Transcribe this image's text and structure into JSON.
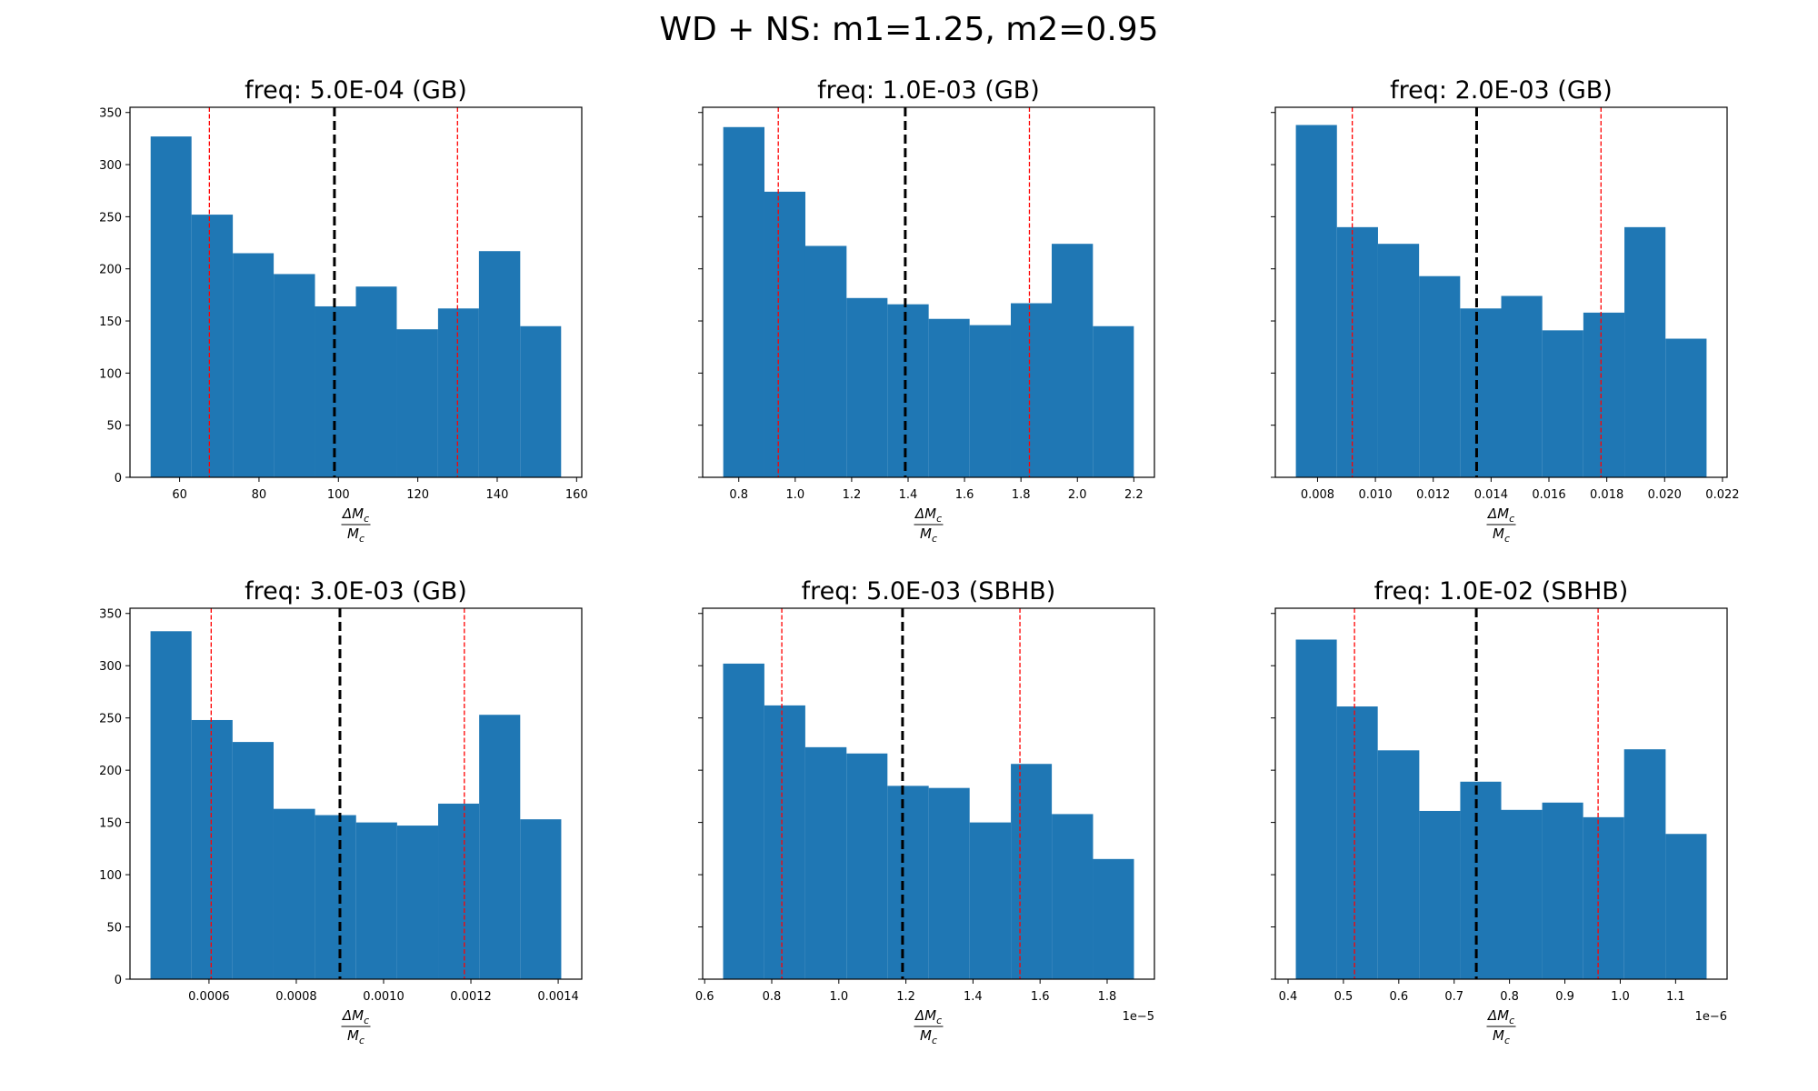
{
  "figure": {
    "suptitle": "WD + NS: m1=1.25, m2=0.95",
    "bar_color": "#1f77b4",
    "median_line_color": "#000000",
    "bound_line_color": "#ff0000"
  },
  "chart_data": [
    {
      "type": "bar",
      "title": "freq: 5.0E-04 (GB)",
      "xlabel": "ΔM_c / M_c",
      "ylabel": "",
      "bin_edges": [
        52.7,
        63.0,
        73.4,
        83.7,
        94.1,
        104.4,
        114.7,
        125.1,
        135.4,
        145.8,
        156.1
      ],
      "counts": [
        327,
        252,
        215,
        195,
        164,
        183,
        142,
        162,
        217,
        145
      ],
      "median": 99.0,
      "lower_bound": 67.5,
      "upper_bound": 130.0,
      "xlim": [
        47.5,
        161.3
      ],
      "ylim": [
        0,
        355
      ],
      "xticks": [
        60,
        80,
        100,
        120,
        140,
        160
      ],
      "xtick_labels": [
        "60",
        "80",
        "100",
        "120",
        "140",
        "160"
      ],
      "yticks": [
        0,
        50,
        100,
        150,
        200,
        250,
        300,
        350
      ],
      "ytick_labels": [
        "0",
        "50",
        "100",
        "150",
        "200",
        "250",
        "300",
        "350"
      ],
      "offset_text": ""
    },
    {
      "type": "bar",
      "title": "freq: 1.0E-03 (GB)",
      "xlabel": "ΔM_c / M_c",
      "ylabel": "",
      "bin_edges": [
        0.745,
        0.891,
        1.036,
        1.182,
        1.327,
        1.473,
        1.618,
        1.764,
        1.909,
        2.055,
        2.2
      ],
      "counts": [
        336,
        274,
        222,
        172,
        166,
        152,
        146,
        167,
        224,
        145
      ],
      "median": 1.39,
      "lower_bound": 0.94,
      "upper_bound": 1.83,
      "xlim": [
        0.672,
        2.273
      ],
      "ylim": [
        0,
        355
      ],
      "xticks": [
        0.8,
        1.0,
        1.2,
        1.4,
        1.6,
        1.8,
        2.0,
        2.2
      ],
      "xtick_labels": [
        "0.8",
        "1.0",
        "1.2",
        "1.4",
        "1.6",
        "1.8",
        "2.0",
        "2.2"
      ],
      "yticks": [
        0,
        50,
        100,
        150,
        200,
        250,
        300,
        350
      ],
      "ytick_labels": [],
      "offset_text": ""
    },
    {
      "type": "bar",
      "title": "freq: 2.0E-03 (GB)",
      "xlabel": "ΔM_c / M_c",
      "ylabel": "",
      "bin_edges": [
        0.00725,
        0.00867,
        0.01009,
        0.01151,
        0.01293,
        0.01435,
        0.01577,
        0.01719,
        0.01861,
        0.02003,
        0.02145
      ],
      "counts": [
        338,
        240,
        224,
        193,
        162,
        174,
        141,
        158,
        240,
        133
      ],
      "median": 0.0135,
      "lower_bound": 0.0092,
      "upper_bound": 0.0178,
      "xlim": [
        0.00654,
        0.02216
      ],
      "ylim": [
        0,
        355
      ],
      "xticks": [
        0.008,
        0.01,
        0.012,
        0.014,
        0.016,
        0.018,
        0.02,
        0.022
      ],
      "xtick_labels": [
        "0.008",
        "0.010",
        "0.012",
        "0.014",
        "0.016",
        "0.018",
        "0.020",
        "0.022"
      ],
      "yticks": [
        0,
        50,
        100,
        150,
        200,
        250,
        300,
        350
      ],
      "ytick_labels": [],
      "offset_text": ""
    },
    {
      "type": "bar",
      "title": "freq: 3.0E-03 (GB)",
      "xlabel": "ΔM_c / M_c",
      "ylabel": "",
      "bin_edges": [
        0.000466,
        0.00056,
        0.000654,
        0.000748,
        0.000843,
        0.000937,
        0.001031,
        0.001125,
        0.001219,
        0.001313,
        0.001407
      ],
      "counts": [
        333,
        248,
        227,
        163,
        157,
        150,
        147,
        168,
        253,
        153
      ],
      "median": 0.0009,
      "lower_bound": 0.000605,
      "upper_bound": 0.001185,
      "xlim": [
        0.000419,
        0.001454
      ],
      "ylim": [
        0,
        355
      ],
      "xticks": [
        0.0006,
        0.0008,
        0.001,
        0.0012,
        0.0014
      ],
      "xtick_labels": [
        "0.0006",
        "0.0008",
        "0.0010",
        "0.0012",
        "0.0014"
      ],
      "yticks": [
        0,
        50,
        100,
        150,
        200,
        250,
        300,
        350
      ],
      "ytick_labels": [
        "0",
        "50",
        "100",
        "150",
        "200",
        "250",
        "300",
        "350"
      ],
      "offset_text": ""
    },
    {
      "type": "bar",
      "title": "freq: 5.0E-03 (SBHB)",
      "xlabel": "ΔM_c / M_c",
      "ylabel": "",
      "bin_edges": [
        0.655,
        0.778,
        0.9,
        1.023,
        1.145,
        1.268,
        1.39,
        1.513,
        1.635,
        1.758,
        1.88
      ],
      "counts": [
        302,
        262,
        222,
        216,
        185,
        183,
        150,
        206,
        158,
        115
      ],
      "median": 1.19,
      "lower_bound": 0.83,
      "upper_bound": 1.54,
      "xlim": [
        0.594,
        1.941
      ],
      "ylim": [
        0,
        355
      ],
      "xticks": [
        0.6,
        0.8,
        1.0,
        1.2,
        1.4,
        1.6,
        1.8
      ],
      "xtick_labels": [
        "0.6",
        "0.8",
        "1.0",
        "1.2",
        "1.4",
        "1.6",
        "1.8"
      ],
      "yticks": [
        0,
        50,
        100,
        150,
        200,
        250,
        300,
        350
      ],
      "ytick_labels": [],
      "offset_text": "1e−5"
    },
    {
      "type": "bar",
      "title": "freq: 1.0E-02 (SBHB)",
      "xlabel": "ΔM_c / M_c",
      "ylabel": "",
      "bin_edges": [
        0.414,
        0.488,
        0.562,
        0.637,
        0.711,
        0.785,
        0.859,
        0.933,
        1.007,
        1.082,
        1.156
      ],
      "counts": [
        325,
        261,
        219,
        161,
        189,
        162,
        169,
        155,
        220,
        139
      ],
      "median": 0.74,
      "lower_bound": 0.52,
      "upper_bound": 0.96,
      "xlim": [
        0.377,
        1.193
      ],
      "ylim": [
        0,
        355
      ],
      "xticks": [
        0.4,
        0.5,
        0.6,
        0.7,
        0.8,
        0.9,
        1.0,
        1.1
      ],
      "xtick_labels": [
        "0.4",
        "0.5",
        "0.6",
        "0.7",
        "0.8",
        "0.9",
        "1.0",
        "1.1"
      ],
      "yticks": [
        0,
        50,
        100,
        150,
        200,
        250,
        300,
        350
      ],
      "ytick_labels": [],
      "offset_text": "1e−6"
    }
  ]
}
